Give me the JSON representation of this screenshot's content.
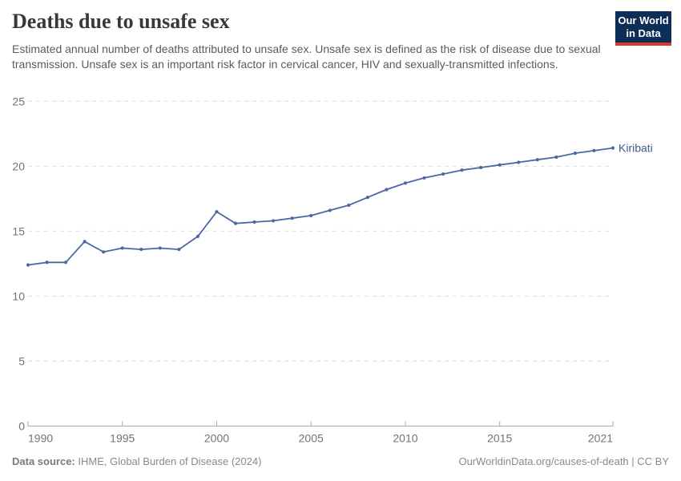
{
  "header": {
    "title": "Deaths due to unsafe sex",
    "subtitle": "Estimated annual number of deaths attributed to unsafe sex. Unsafe sex is defined as the risk of disease due to sexual transmission. Unsafe sex is an important risk factor in cervical cancer, HIV and sexually-transmitted infections.",
    "logo": {
      "line1": "Our World",
      "line2": "in Data",
      "bg_color": "#0d2e57",
      "accent_color": "#d7382e"
    }
  },
  "chart_data": {
    "type": "line",
    "x": [
      1990,
      1991,
      1992,
      1993,
      1994,
      1995,
      1996,
      1997,
      1998,
      1999,
      2000,
      2001,
      2002,
      2003,
      2004,
      2005,
      2006,
      2007,
      2008,
      2009,
      2010,
      2011,
      2012,
      2013,
      2014,
      2015,
      2016,
      2017,
      2018,
      2019,
      2020,
      2021
    ],
    "series": [
      {
        "name": "Kiribati",
        "color": "#4a69a0",
        "label_color": "#3d5c8f",
        "values": [
          12.4,
          12.6,
          12.6,
          14.2,
          13.4,
          13.7,
          13.6,
          13.7,
          13.6,
          14.6,
          16.5,
          15.6,
          15.7,
          15.8,
          16.0,
          16.2,
          16.6,
          17.0,
          17.6,
          18.2,
          18.7,
          19.1,
          19.4,
          19.7,
          19.9,
          20.1,
          20.3,
          20.5,
          20.7,
          21.0,
          21.2,
          21.4
        ]
      }
    ],
    "title": "Deaths due to unsafe sex",
    "xlabel": "",
    "ylabel": "",
    "xlim": [
      1990,
      2021
    ],
    "ylim": [
      0,
      25
    ],
    "x_ticks": [
      1990,
      1995,
      2000,
      2005,
      2010,
      2015,
      2021
    ],
    "y_ticks": [
      0,
      5,
      10,
      15,
      20,
      25
    ],
    "grid": "horizontal-dashed",
    "legend_position": "end-of-line-label",
    "axis_color": "#a8a8a8",
    "grid_color": "#dedede",
    "tick_label_color": "#737373"
  },
  "footer": {
    "source_label": "Data source:",
    "source_text": " IHME, Global Burden of Disease (2024)",
    "link_text": "OurWorldinData.org/causes-of-death | CC BY"
  }
}
